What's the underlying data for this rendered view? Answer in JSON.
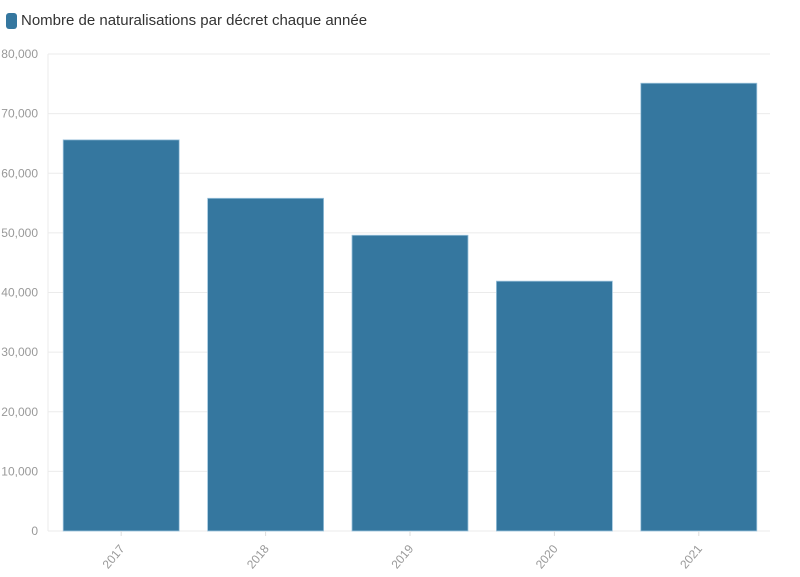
{
  "chart_data": {
    "type": "bar",
    "categories": [
      "2017",
      "2018",
      "2019",
      "2020",
      "2021"
    ],
    "series": [
      {
        "name": "Nombre de naturalisations par décret chaque année",
        "values": [
          65600,
          55800,
          49600,
          41900,
          75100
        ],
        "color": "#35779f"
      }
    ],
    "ylim": [
      0,
      80000
    ],
    "yticks": [
      0,
      10000,
      20000,
      30000,
      40000,
      50000,
      60000,
      70000,
      80000
    ],
    "ytick_labels": [
      "0",
      "10,000",
      "20,000",
      "30,000",
      "40,000",
      "50,000",
      "60,000",
      "70,000",
      "80,000"
    ],
    "grid": true,
    "legend": "top-left",
    "xlabel": "",
    "ylabel": ""
  }
}
